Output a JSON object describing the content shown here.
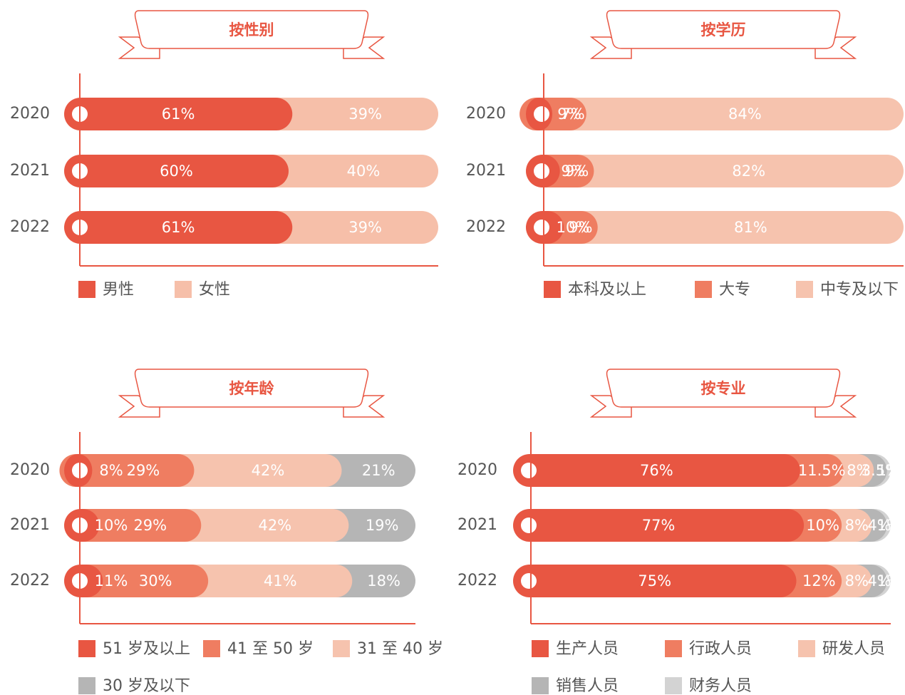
{
  "chart_data": [
    {
      "type": "stacked_bar",
      "title": "按性别",
      "categories": [
        "2020",
        "2021",
        "2022"
      ],
      "series": [
        {
          "name": "男性",
          "color": "#e85642",
          "values": [
            61,
            60,
            61
          ],
          "value_labels": [
            "61%",
            "60%",
            "61%"
          ]
        },
        {
          "name": "女性",
          "color": "#f6bfa9",
          "values": [
            39,
            40,
            39
          ],
          "value_labels": [
            "39%",
            "40%",
            "39%"
          ]
        }
      ]
    },
    {
      "type": "stacked_bar",
      "title": "按学历",
      "categories": [
        "2020",
        "2021",
        "2022"
      ],
      "series": [
        {
          "name": "本科及以上",
          "color": "#e85642",
          "values": [
            7,
            9,
            10
          ],
          "value_labels": [
            "7%",
            "9%",
            "10%"
          ]
        },
        {
          "name": "大专",
          "color": "#ef7d61",
          "values": [
            9,
            9,
            9
          ],
          "value_labels": [
            "9%",
            "9%",
            "9%"
          ]
        },
        {
          "name": "中专及以下",
          "color": "#f6c3ae",
          "values": [
            84,
            82,
            81
          ],
          "value_labels": [
            "84%",
            "82%",
            "81%"
          ]
        }
      ]
    },
    {
      "type": "stacked_bar",
      "title": "按年龄",
      "categories": [
        "2020",
        "2021",
        "2022"
      ],
      "series": [
        {
          "name": "51 岁及以上",
          "color": "#e85642",
          "values": [
            8,
            10,
            11
          ],
          "value_labels": [
            "8%",
            "10%",
            "11%"
          ]
        },
        {
          "name": "41 至 50 岁",
          "color": "#ef7d61",
          "values": [
            29,
            29,
            30
          ],
          "value_labels": [
            "29%",
            "29%",
            "30%"
          ]
        },
        {
          "name": "31 至 40 岁",
          "color": "#f6c3ae",
          "values": [
            42,
            42,
            41
          ],
          "value_labels": [
            "42%",
            "42%",
            "41%"
          ]
        },
        {
          "name": "30 岁及以下",
          "color": "#b5b5b5",
          "values": [
            21,
            19,
            18
          ],
          "value_labels": [
            "21%",
            "19%",
            "18%"
          ]
        }
      ]
    },
    {
      "type": "stacked_bar",
      "title": "按专业",
      "categories": [
        "2020",
        "2021",
        "2022"
      ],
      "series": [
        {
          "name": "生产人员",
          "color": "#e85642",
          "values": [
            76,
            77,
            75
          ],
          "value_labels": [
            "76%",
            "77%",
            "75%"
          ]
        },
        {
          "name": "行政人员",
          "color": "#ef7d61",
          "values": [
            11.5,
            10,
            12
          ],
          "value_labels": [
            "11.5%",
            "10%",
            "12%"
          ]
        },
        {
          "name": "研发人员",
          "color": "#f6c3ae",
          "values": [
            8,
            8,
            8
          ],
          "value_labels": [
            "8%",
            "8%",
            "8%"
          ]
        },
        {
          "name": "销售人员",
          "color": "#b5b5b5",
          "values": [
            3.5,
            4,
            4
          ],
          "value_labels": [
            "3.5%",
            "4%",
            "4%"
          ]
        },
        {
          "name": "财务人员",
          "color": "#d3d3d3",
          "values": [
            1,
            1,
            1
          ],
          "value_labels": [
            "1%",
            "1%",
            "1%"
          ]
        }
      ]
    }
  ]
}
